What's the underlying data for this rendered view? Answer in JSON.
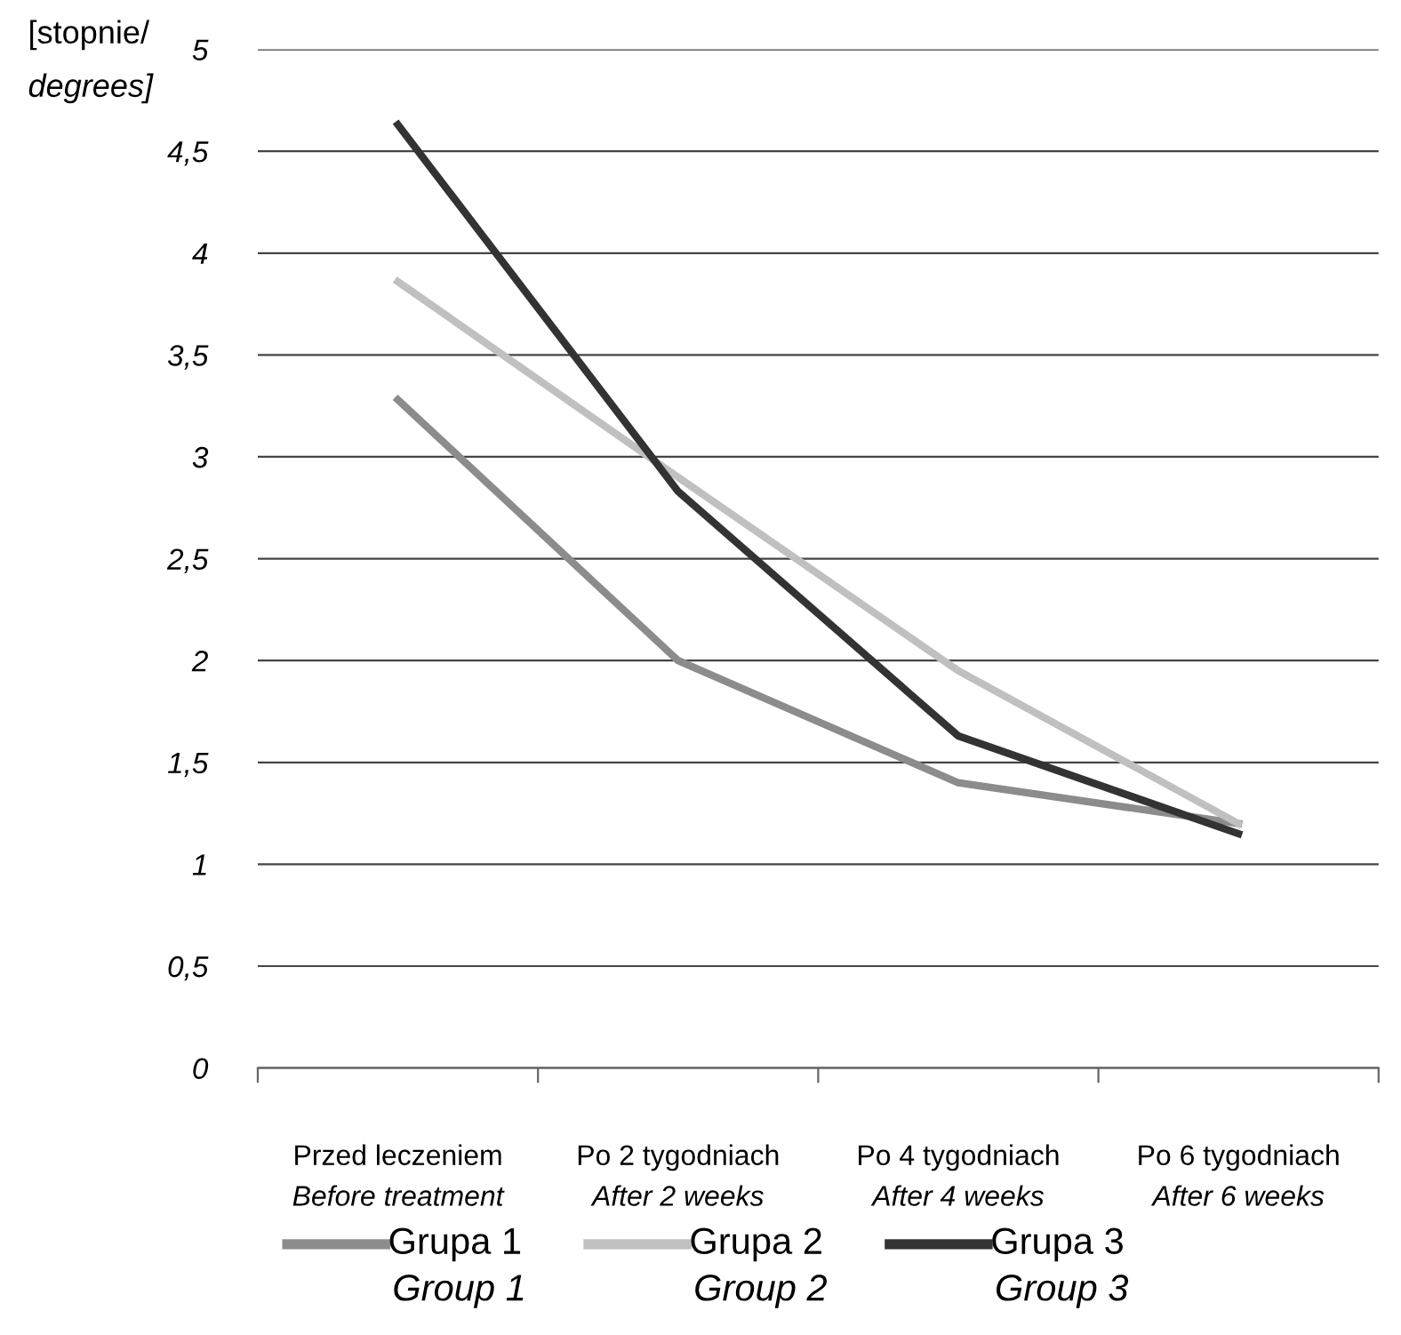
{
  "chart_data": {
    "type": "line",
    "ylabel": "[stopnie/\ndegrees]",
    "categories": [
      "Przed leczeniem\nBefore treatment",
      "Po 2 tygodniach\nAfter 2 weeks",
      "Po 4 tygodniach\nAfter 4 weeks",
      "Po 6 tygodniach\nAfter 6 weeks"
    ],
    "series": [
      {
        "name": "Grupa 1\nGroup 1",
        "color": "#8c8c8c",
        "values": [
          3.28,
          2.0,
          1.4,
          1.2
        ]
      },
      {
        "name": "Grupa 2\nGroup 2",
        "color": "#c0c0c0",
        "values": [
          3.86,
          2.9,
          1.95,
          1.2
        ]
      },
      {
        "name": "Grupa 3\nGroup 3",
        "color": "#333333",
        "values": [
          4.63,
          2.83,
          1.63,
          1.15
        ]
      }
    ],
    "ylim": [
      0,
      5
    ],
    "yticks": [
      0,
      {
        "value": 0.5,
        "label": "0,5"
      },
      1,
      {
        "value": 1.5,
        "label": "1,5"
      },
      2,
      {
        "value": 2.5,
        "label": "2,5"
      },
      3,
      {
        "value": 3.5,
        "label": "3,5"
      },
      4,
      {
        "value": 4.5,
        "label": "4,5"
      },
      5
    ],
    "grid": "y",
    "legend": "bottom",
    "marker": "none",
    "line_style": "solid"
  }
}
